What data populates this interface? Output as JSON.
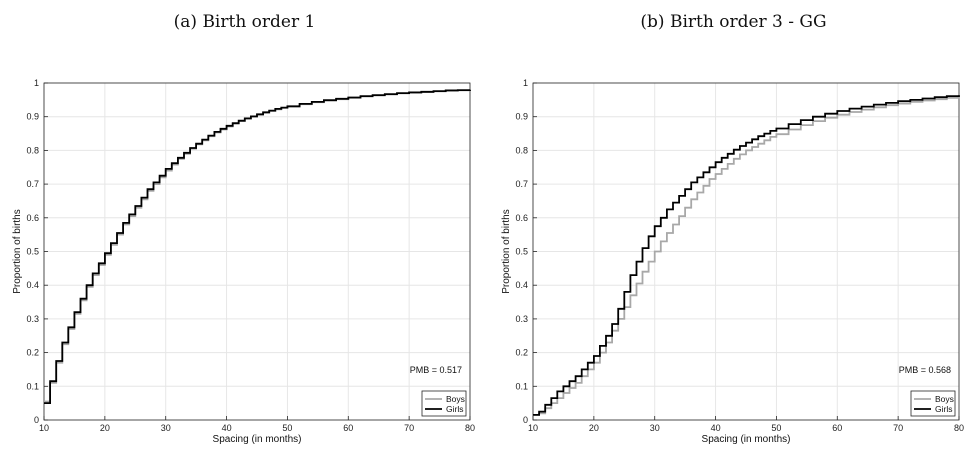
{
  "chart_data": [
    {
      "type": "line",
      "title": "(a) Birth order 1",
      "xlabel": "Spacing (in months)",
      "ylabel": "Proportion of births",
      "xlim": [
        10,
        80
      ],
      "ylim": [
        0,
        1
      ],
      "xticks": [
        "10",
        "20",
        "30",
        "40",
        "50",
        "60",
        "70",
        "80"
      ],
      "yticks": [
        "0",
        "0.1",
        "0.2",
        "0.3",
        "0.4",
        "0.5",
        "0.6",
        "0.7",
        "0.8",
        "0.9",
        "1"
      ],
      "grid": true,
      "step": true,
      "annotation": "PMB =  0.517",
      "legend": {
        "placement": "bottom-right"
      },
      "series": [
        {
          "name": "Boys",
          "color": "#a8a8a8",
          "x": [
            10,
            11,
            12,
            13,
            14,
            15,
            16,
            17,
            18,
            19,
            20,
            21,
            22,
            23,
            24,
            25,
            26,
            27,
            28,
            29,
            30,
            31,
            32,
            33,
            34,
            35,
            36,
            37,
            38,
            39,
            40,
            41,
            42,
            43,
            44,
            45,
            46,
            47,
            48,
            49,
            50,
            52,
            54,
            56,
            58,
            60,
            62,
            64,
            66,
            68,
            70,
            72,
            74,
            76,
            78,
            80
          ],
          "y": [
            0.055,
            0.11,
            0.17,
            0.225,
            0.27,
            0.315,
            0.355,
            0.395,
            0.43,
            0.46,
            0.49,
            0.52,
            0.55,
            0.58,
            0.605,
            0.63,
            0.655,
            0.68,
            0.7,
            0.72,
            0.74,
            0.758,
            0.775,
            0.79,
            0.805,
            0.818,
            0.83,
            0.842,
            0.853,
            0.862,
            0.871,
            0.879,
            0.887,
            0.894,
            0.9,
            0.906,
            0.912,
            0.917,
            0.922,
            0.926,
            0.93,
            0.937,
            0.943,
            0.948,
            0.952,
            0.956,
            0.96,
            0.963,
            0.966,
            0.969,
            0.971,
            0.973,
            0.975,
            0.977,
            0.978,
            0.979
          ]
        },
        {
          "name": "Girls",
          "color": "#000000",
          "x": [
            10,
            11,
            12,
            13,
            14,
            15,
            16,
            17,
            18,
            19,
            20,
            21,
            22,
            23,
            24,
            25,
            26,
            27,
            28,
            29,
            30,
            31,
            32,
            33,
            34,
            35,
            36,
            37,
            38,
            39,
            40,
            41,
            42,
            43,
            44,
            45,
            46,
            47,
            48,
            49,
            50,
            52,
            54,
            56,
            58,
            60,
            62,
            64,
            66,
            68,
            70,
            72,
            74,
            76,
            78,
            80
          ],
          "y": [
            0.05,
            0.115,
            0.175,
            0.23,
            0.275,
            0.32,
            0.36,
            0.4,
            0.435,
            0.465,
            0.495,
            0.525,
            0.555,
            0.585,
            0.61,
            0.635,
            0.66,
            0.685,
            0.705,
            0.725,
            0.745,
            0.762,
            0.778,
            0.793,
            0.807,
            0.82,
            0.832,
            0.844,
            0.855,
            0.864,
            0.873,
            0.881,
            0.888,
            0.895,
            0.901,
            0.907,
            0.913,
            0.918,
            0.923,
            0.927,
            0.931,
            0.938,
            0.944,
            0.949,
            0.953,
            0.957,
            0.961,
            0.964,
            0.967,
            0.97,
            0.972,
            0.974,
            0.976,
            0.978,
            0.979,
            0.98
          ]
        }
      ]
    },
    {
      "type": "line",
      "title": "(b) Birth order 3 - GG",
      "xlabel": "Spacing (in months)",
      "ylabel": "Proportion of births",
      "xlim": [
        10,
        80
      ],
      "ylim": [
        0,
        1
      ],
      "xticks": [
        "10",
        "20",
        "30",
        "40",
        "50",
        "60",
        "70",
        "80"
      ],
      "yticks": [
        "0",
        "0.1",
        "0.2",
        "0.3",
        "0.4",
        "0.5",
        "0.6",
        "0.7",
        "0.8",
        "0.9",
        "1"
      ],
      "grid": true,
      "step": true,
      "annotation": "PMB =  0.568",
      "legend": {
        "placement": "bottom-right"
      },
      "series": [
        {
          "name": "Boys",
          "color": "#a8a8a8",
          "x": [
            10,
            11,
            12,
            13,
            14,
            15,
            16,
            17,
            18,
            19,
            20,
            21,
            22,
            23,
            24,
            25,
            26,
            27,
            28,
            29,
            30,
            31,
            32,
            33,
            34,
            35,
            36,
            37,
            38,
            39,
            40,
            41,
            42,
            43,
            44,
            45,
            46,
            47,
            48,
            49,
            50,
            52,
            54,
            56,
            58,
            60,
            62,
            64,
            66,
            68,
            70,
            72,
            74,
            76,
            78,
            80
          ],
          "y": [
            0.015,
            0.02,
            0.035,
            0.05,
            0.065,
            0.08,
            0.095,
            0.11,
            0.13,
            0.15,
            0.17,
            0.2,
            0.23,
            0.265,
            0.3,
            0.335,
            0.37,
            0.405,
            0.44,
            0.47,
            0.5,
            0.53,
            0.555,
            0.58,
            0.605,
            0.63,
            0.655,
            0.675,
            0.695,
            0.715,
            0.73,
            0.745,
            0.76,
            0.775,
            0.788,
            0.8,
            0.81,
            0.82,
            0.83,
            0.84,
            0.848,
            0.862,
            0.875,
            0.887,
            0.897,
            0.906,
            0.914,
            0.921,
            0.928,
            0.934,
            0.939,
            0.944,
            0.948,
            0.952,
            0.956,
            0.96
          ]
        },
        {
          "name": "Girls",
          "color": "#000000",
          "x": [
            10,
            11,
            12,
            13,
            14,
            15,
            16,
            17,
            18,
            19,
            20,
            21,
            22,
            23,
            24,
            25,
            26,
            27,
            28,
            29,
            30,
            31,
            32,
            33,
            34,
            35,
            36,
            37,
            38,
            39,
            40,
            41,
            42,
            43,
            44,
            45,
            46,
            47,
            48,
            49,
            50,
            52,
            54,
            56,
            58,
            60,
            62,
            64,
            66,
            68,
            70,
            72,
            74,
            76,
            78,
            80
          ],
          "y": [
            0.015,
            0.025,
            0.045,
            0.065,
            0.085,
            0.1,
            0.115,
            0.13,
            0.15,
            0.17,
            0.19,
            0.22,
            0.25,
            0.285,
            0.33,
            0.38,
            0.43,
            0.47,
            0.51,
            0.545,
            0.575,
            0.6,
            0.625,
            0.645,
            0.665,
            0.685,
            0.705,
            0.72,
            0.735,
            0.75,
            0.765,
            0.778,
            0.79,
            0.802,
            0.813,
            0.823,
            0.833,
            0.842,
            0.85,
            0.858,
            0.865,
            0.878,
            0.89,
            0.9,
            0.909,
            0.917,
            0.924,
            0.93,
            0.936,
            0.941,
            0.946,
            0.95,
            0.954,
            0.958,
            0.961,
            0.964
          ]
        }
      ]
    }
  ]
}
